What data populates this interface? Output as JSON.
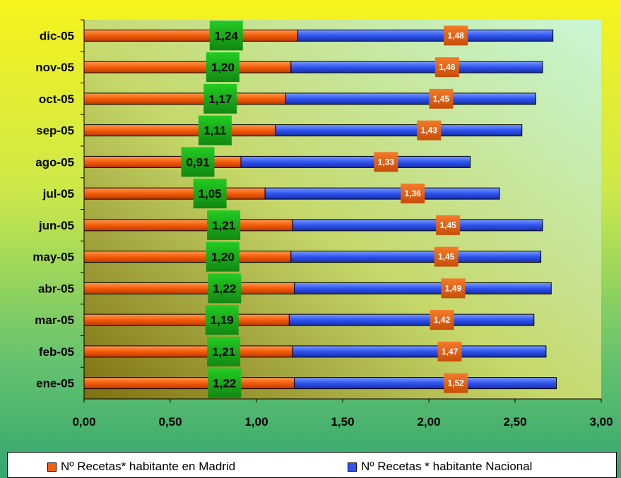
{
  "chart_data": {
    "type": "bar",
    "orientation": "horizontal",
    "stacked": true,
    "categories": [
      "ene-05",
      "feb-05",
      "mar-05",
      "abr-05",
      "may-05",
      "jun-05",
      "jul-05",
      "ago-05",
      "sep-05",
      "oct-05",
      "nov-05",
      "dic-05"
    ],
    "series": [
      {
        "name": "Nº Recetas* habitante en Madrid",
        "values": [
          1.22,
          1.21,
          1.19,
          1.22,
          1.2,
          1.21,
          1.05,
          0.91,
          1.11,
          1.17,
          1.2,
          1.24
        ],
        "labels": [
          "1,22",
          "1,21",
          "1,19",
          "1,22",
          "1,20",
          "1,21",
          "1,05",
          "0,91",
          "1,11",
          "1,17",
          "1,20",
          "1,24"
        ],
        "color": "#f06010"
      },
      {
        "name": "Nº  Recetas * habitante Nacional",
        "values": [
          1.52,
          1.47,
          1.42,
          1.49,
          1.45,
          1.45,
          1.36,
          1.33,
          1.43,
          1.45,
          1.46,
          1.48
        ],
        "labels": [
          "1,52",
          "1,47",
          "1,42",
          "1,49",
          "1,45",
          "1,45",
          "1,36",
          "1,33",
          "1,43",
          "1,45",
          "1,46",
          "1,48"
        ],
        "color": "#2f54f0"
      }
    ],
    "xlim": [
      0,
      3
    ],
    "x_ticks": [
      0,
      0.5,
      1,
      1.5,
      2,
      2.5,
      3
    ],
    "x_tick_labels": [
      "0,00",
      "0,50",
      "1,00",
      "1,50",
      "2,00",
      "2,50",
      "3,00"
    ],
    "title": "",
    "xlabel": "",
    "ylabel": "",
    "grid": false,
    "legend_position": "bottom",
    "label_box_colors": {
      "madrid": "#22bb22",
      "nacional": "#e8621a"
    },
    "plot_background": [
      "#ccf7d0",
      "#8a7a12"
    ]
  }
}
